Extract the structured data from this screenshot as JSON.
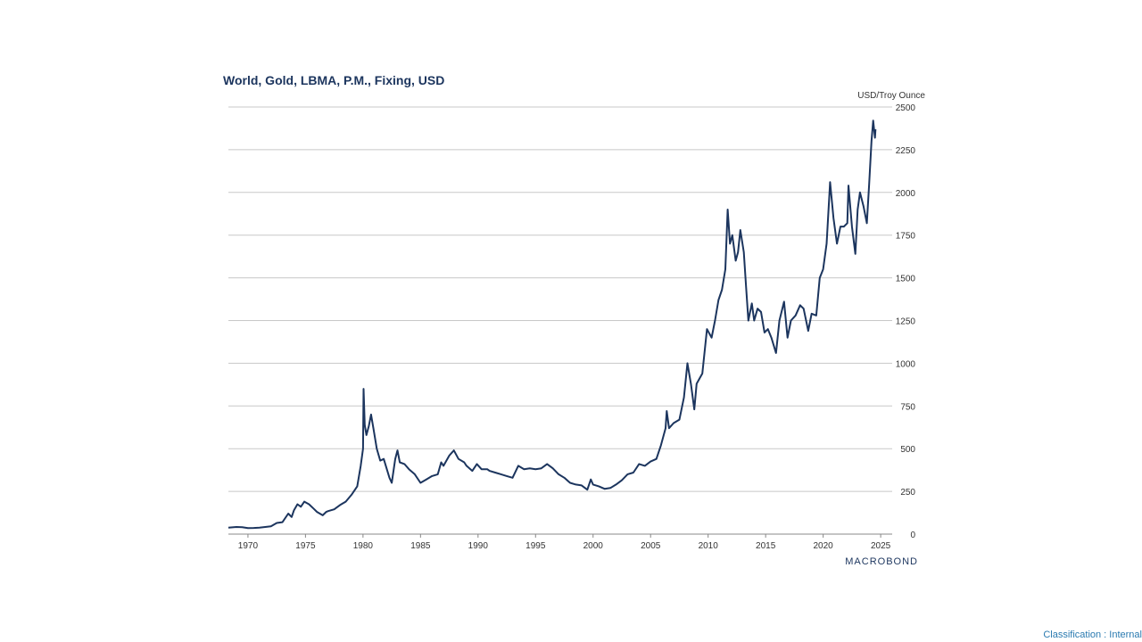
{
  "chart_data": {
    "type": "line",
    "title": "World, Gold, LBMA, P.M., Fixing, USD",
    "ylabel": "USD/Troy Ounce",
    "xlabel": "",
    "xlim": [
      1968.3,
      2026.0
    ],
    "ylim": [
      0,
      2500
    ],
    "x_ticks": [
      1970,
      1975,
      1980,
      1985,
      1990,
      1995,
      2000,
      2005,
      2010,
      2015,
      2020,
      2025
    ],
    "y_ticks": [
      0,
      250,
      500,
      750,
      1000,
      1250,
      1500,
      1750,
      2000,
      2250,
      2500
    ],
    "y_axis_side": "right",
    "grid": "horizontal",
    "series": [
      {
        "name": "World, Gold, LBMA, P.M., Fixing, USD",
        "color": "#1c355e",
        "points": [
          [
            1968.3,
            38
          ],
          [
            1969.0,
            42
          ],
          [
            1969.5,
            40
          ],
          [
            1970.0,
            35
          ],
          [
            1970.5,
            36
          ],
          [
            1971.0,
            38
          ],
          [
            1971.5,
            42
          ],
          [
            1972.0,
            46
          ],
          [
            1972.5,
            65
          ],
          [
            1973.0,
            70
          ],
          [
            1973.5,
            120
          ],
          [
            1973.8,
            100
          ],
          [
            1974.0,
            140
          ],
          [
            1974.3,
            175
          ],
          [
            1974.6,
            160
          ],
          [
            1974.9,
            190
          ],
          [
            1975.3,
            175
          ],
          [
            1975.7,
            150
          ],
          [
            1976.0,
            130
          ],
          [
            1976.5,
            110
          ],
          [
            1976.8,
            130
          ],
          [
            1977.0,
            135
          ],
          [
            1977.5,
            145
          ],
          [
            1978.0,
            170
          ],
          [
            1978.5,
            190
          ],
          [
            1979.0,
            230
          ],
          [
            1979.5,
            280
          ],
          [
            1979.8,
            400
          ],
          [
            1980.0,
            500
          ],
          [
            1980.05,
            850
          ],
          [
            1980.15,
            640
          ],
          [
            1980.3,
            580
          ],
          [
            1980.5,
            630
          ],
          [
            1980.7,
            700
          ],
          [
            1980.9,
            620
          ],
          [
            1981.2,
            500
          ],
          [
            1981.5,
            430
          ],
          [
            1981.8,
            440
          ],
          [
            1982.3,
            330
          ],
          [
            1982.5,
            300
          ],
          [
            1982.8,
            440
          ],
          [
            1983.0,
            490
          ],
          [
            1983.2,
            420
          ],
          [
            1983.6,
            410
          ],
          [
            1984.0,
            380
          ],
          [
            1984.5,
            350
          ],
          [
            1985.0,
            300
          ],
          [
            1985.5,
            320
          ],
          [
            1986.0,
            340
          ],
          [
            1986.5,
            350
          ],
          [
            1986.8,
            420
          ],
          [
            1987.0,
            400
          ],
          [
            1987.5,
            460
          ],
          [
            1987.9,
            490
          ],
          [
            1988.3,
            440
          ],
          [
            1988.8,
            420
          ],
          [
            1989.0,
            400
          ],
          [
            1989.5,
            370
          ],
          [
            1989.9,
            410
          ],
          [
            1990.3,
            380
          ],
          [
            1990.8,
            380
          ],
          [
            1991.0,
            370
          ],
          [
            1991.5,
            360
          ],
          [
            1992.0,
            350
          ],
          [
            1992.5,
            340
          ],
          [
            1993.0,
            330
          ],
          [
            1993.5,
            400
          ],
          [
            1994.0,
            380
          ],
          [
            1994.5,
            385
          ],
          [
            1995.0,
            380
          ],
          [
            1995.5,
            385
          ],
          [
            1996.0,
            410
          ],
          [
            1996.5,
            385
          ],
          [
            1997.0,
            350
          ],
          [
            1997.5,
            330
          ],
          [
            1998.0,
            300
          ],
          [
            1998.5,
            290
          ],
          [
            1999.0,
            285
          ],
          [
            1999.5,
            260
          ],
          [
            1999.8,
            320
          ],
          [
            2000.0,
            290
          ],
          [
            2000.5,
            280
          ],
          [
            2001.0,
            265
          ],
          [
            2001.5,
            270
          ],
          [
            2002.0,
            290
          ],
          [
            2002.5,
            315
          ],
          [
            2003.0,
            350
          ],
          [
            2003.5,
            360
          ],
          [
            2004.0,
            410
          ],
          [
            2004.5,
            400
          ],
          [
            2005.0,
            425
          ],
          [
            2005.5,
            440
          ],
          [
            2005.9,
            520
          ],
          [
            2006.3,
            620
          ],
          [
            2006.4,
            720
          ],
          [
            2006.6,
            620
          ],
          [
            2007.0,
            650
          ],
          [
            2007.5,
            670
          ],
          [
            2007.9,
            800
          ],
          [
            2008.2,
            1000
          ],
          [
            2008.5,
            880
          ],
          [
            2008.8,
            730
          ],
          [
            2009.0,
            880
          ],
          [
            2009.5,
            940
          ],
          [
            2009.9,
            1200
          ],
          [
            2010.3,
            1150
          ],
          [
            2010.6,
            1250
          ],
          [
            2010.9,
            1370
          ],
          [
            2011.2,
            1430
          ],
          [
            2011.5,
            1550
          ],
          [
            2011.7,
            1900
          ],
          [
            2011.9,
            1700
          ],
          [
            2012.1,
            1750
          ],
          [
            2012.4,
            1600
          ],
          [
            2012.6,
            1650
          ],
          [
            2012.8,
            1780
          ],
          [
            2013.1,
            1650
          ],
          [
            2013.3,
            1450
          ],
          [
            2013.5,
            1250
          ],
          [
            2013.8,
            1350
          ],
          [
            2014.0,
            1250
          ],
          [
            2014.3,
            1320
          ],
          [
            2014.6,
            1300
          ],
          [
            2014.9,
            1180
          ],
          [
            2015.2,
            1200
          ],
          [
            2015.5,
            1150
          ],
          [
            2015.9,
            1060
          ],
          [
            2016.2,
            1250
          ],
          [
            2016.6,
            1360
          ],
          [
            2016.9,
            1150
          ],
          [
            2017.2,
            1250
          ],
          [
            2017.6,
            1280
          ],
          [
            2018.0,
            1340
          ],
          [
            2018.3,
            1320
          ],
          [
            2018.7,
            1190
          ],
          [
            2019.0,
            1290
          ],
          [
            2019.4,
            1280
          ],
          [
            2019.7,
            1500
          ],
          [
            2020.0,
            1550
          ],
          [
            2020.3,
            1700
          ],
          [
            2020.6,
            2060
          ],
          [
            2020.9,
            1850
          ],
          [
            2021.2,
            1700
          ],
          [
            2021.5,
            1800
          ],
          [
            2021.8,
            1800
          ],
          [
            2022.1,
            1820
          ],
          [
            2022.2,
            2040
          ],
          [
            2022.5,
            1800
          ],
          [
            2022.8,
            1640
          ],
          [
            2023.0,
            1900
          ],
          [
            2023.2,
            2000
          ],
          [
            2023.5,
            1920
          ],
          [
            2023.8,
            1820
          ],
          [
            2024.0,
            2050
          ],
          [
            2024.2,
            2300
          ],
          [
            2024.35,
            2420
          ],
          [
            2024.5,
            2320
          ],
          [
            2024.55,
            2370
          ]
        ]
      }
    ]
  },
  "branding": {
    "logo_text": "MACROBOND"
  },
  "footer": {
    "classification": "Classification : Internal"
  }
}
